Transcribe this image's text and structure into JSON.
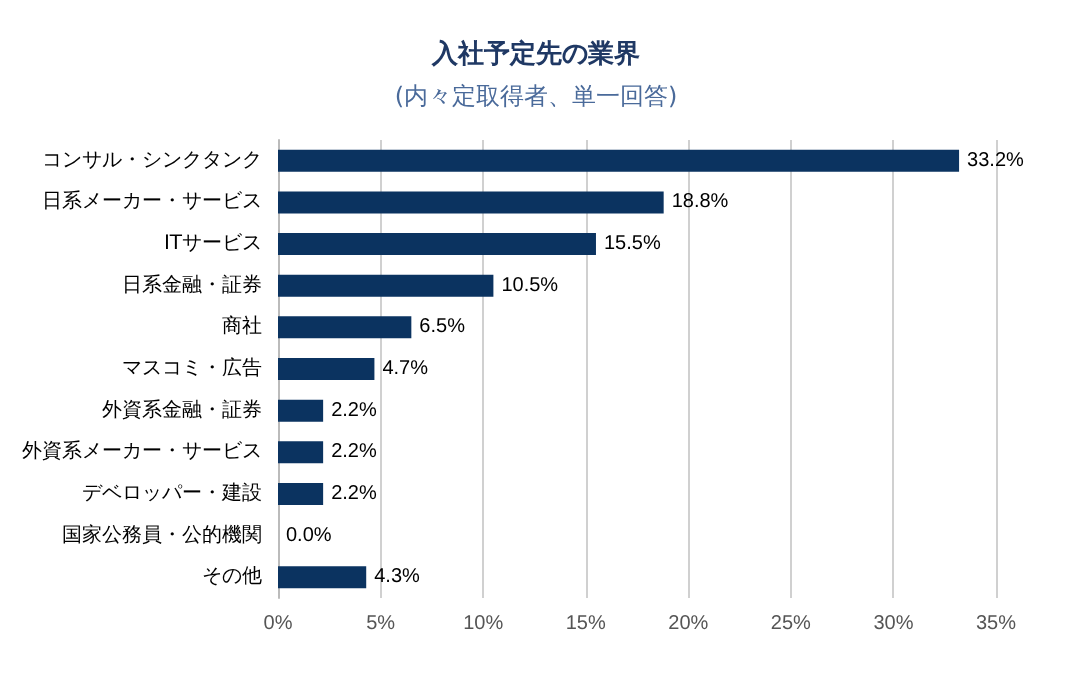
{
  "chart_data": {
    "type": "bar",
    "orientation": "horizontal",
    "title": "入社予定先の業界",
    "subtitle": "(内々定取得者、単一回答)",
    "categories": [
      "コンサル・シンクタンク",
      "日系メーカー・サービス",
      "ITサービス",
      "日系金融・証券",
      "商社",
      "マスコミ・広告",
      "外資系金融・証券",
      "外資系メーカー・サービス",
      "デベロッパー・建設",
      "国家公務員・公的機関",
      "その他"
    ],
    "values": [
      33.2,
      18.8,
      15.5,
      10.5,
      6.5,
      4.7,
      2.2,
      2.2,
      2.2,
      0.0,
      4.3
    ],
    "value_labels": [
      "33.2%",
      "18.8%",
      "15.5%",
      "10.5%",
      "6.5%",
      "4.7%",
      "2.2%",
      "2.2%",
      "2.2%",
      "0.0%",
      "4.3%"
    ],
    "color": "#0b3360",
    "xlim": [
      0,
      35
    ],
    "xticks": [
      {
        "value": 0,
        "label": "0%"
      },
      {
        "value": 5,
        "label": "5%"
      },
      {
        "value": 10,
        "label": "10%"
      },
      {
        "value": 15,
        "label": "15%"
      },
      {
        "value": 20,
        "label": "20%"
      },
      {
        "value": 25,
        "label": "25%"
      },
      {
        "value": 30,
        "label": "30%"
      },
      {
        "value": 35,
        "label": "35%"
      }
    ],
    "grid": "x"
  }
}
